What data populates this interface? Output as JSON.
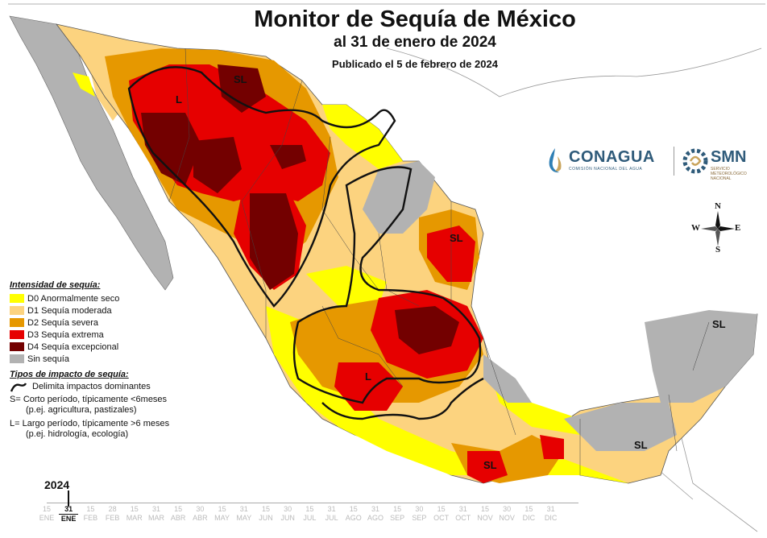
{
  "header": {
    "title": "Monitor de Sequía de México",
    "subtitle": "al 31 de enero de 2024",
    "published": "Publicado el 5 de febrero de 2024"
  },
  "logos": {
    "conagua": "CONAGUA",
    "conagua_sub": "COMISIÓN NACIONAL DEL AGUA",
    "smn": "SMN",
    "smn_sub": "SERVICIO METEOROLÓGICO NACIONAL"
  },
  "compass": {
    "n": "N",
    "s": "S",
    "e": "E",
    "w": "W"
  },
  "map_labels": {
    "sl_north": "SL",
    "l_northwest": "L",
    "sl_northeast": "SL",
    "l_center": "L",
    "sl_south": "SL",
    "sl_southeast": "SL",
    "sl_yucatan": "SL"
  },
  "legend": {
    "intensity_title": "Intensidad de sequía:",
    "items": [
      {
        "label": "D0 Anormalmente seco",
        "color": "#ffff00"
      },
      {
        "label": "D1 Sequía moderada",
        "color": "#fcd37f"
      },
      {
        "label": "D2 Sequía severa",
        "color": "#e69800"
      },
      {
        "label": "D3 Sequía extrema",
        "color": "#e60000"
      },
      {
        "label": "D4 Sequía excepcional",
        "color": "#730000"
      },
      {
        "label": "Sin sequía",
        "color": "#b2b2b2"
      }
    ],
    "impact_title": "Tipos de impacto de sequía:",
    "delimits": "Delimita impactos dominantes",
    "short_1": "S= Corto período, típicamente <6meses",
    "short_2": "(p.ej. agricultura, pastizales)",
    "long_1": "L= Largo período, típicamente >6 meses",
    "long_2": "(p.ej. hidrología, ecología)"
  },
  "timeline": {
    "year": "2024",
    "items": [
      {
        "day": "15",
        "month": "ENE",
        "active": false
      },
      {
        "day": "31",
        "month": "ENE",
        "active": true
      },
      {
        "day": "15",
        "month": "FEB",
        "active": false
      },
      {
        "day": "28",
        "month": "FEB",
        "active": false
      },
      {
        "day": "15",
        "month": "MAR",
        "active": false
      },
      {
        "day": "31",
        "month": "MAR",
        "active": false
      },
      {
        "day": "15",
        "month": "ABR",
        "active": false
      },
      {
        "day": "30",
        "month": "ABR",
        "active": false
      },
      {
        "day": "15",
        "month": "MAY",
        "active": false
      },
      {
        "day": "31",
        "month": "MAY",
        "active": false
      },
      {
        "day": "15",
        "month": "JUN",
        "active": false
      },
      {
        "day": "30",
        "month": "JUN",
        "active": false
      },
      {
        "day": "15",
        "month": "JUL",
        "active": false
      },
      {
        "day": "31",
        "month": "JUL",
        "active": false
      },
      {
        "day": "15",
        "month": "AGO",
        "active": false
      },
      {
        "day": "31",
        "month": "AGO",
        "active": false
      },
      {
        "day": "15",
        "month": "SEP",
        "active": false
      },
      {
        "day": "30",
        "month": "SEP",
        "active": false
      },
      {
        "day": "15",
        "month": "OCT",
        "active": false
      },
      {
        "day": "31",
        "month": "OCT",
        "active": false
      },
      {
        "day": "15",
        "month": "NOV",
        "active": false
      },
      {
        "day": "30",
        "month": "NOV",
        "active": false
      },
      {
        "day": "15",
        "month": "DIC",
        "active": false
      },
      {
        "day": "31",
        "month": "DIC",
        "active": false
      }
    ]
  }
}
